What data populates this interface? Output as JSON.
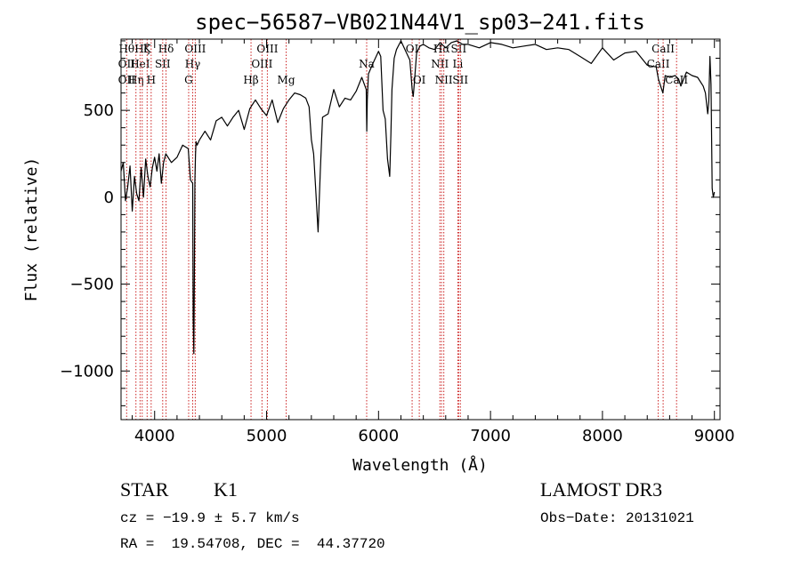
{
  "chart_data": {
    "type": "line",
    "title": "spec−56587−VB021N44V1_sp03−241.fits",
    "xlabel": "Wavelength (Å)",
    "ylabel": "Flux (relative)",
    "xlim": [
      3700,
      9050
    ],
    "ylim": [
      -1280,
      910
    ],
    "x_ticks": [
      4000,
      5000,
      6000,
      7000,
      8000,
      9000
    ],
    "x_tick_labels": [
      "4000",
      "5000",
      "6000",
      "7000",
      "8000",
      "9000"
    ],
    "y_ticks": [
      500,
      0,
      -500,
      -1000
    ],
    "y_tick_labels": [
      "500",
      "0",
      "−500",
      "−1000"
    ],
    "series": [
      {
        "name": "flux",
        "x": [
          3700,
          3720,
          3740,
          3760,
          3780,
          3800,
          3820,
          3840,
          3860,
          3880,
          3900,
          3920,
          3940,
          3960,
          3980,
          4000,
          4020,
          4040,
          4060,
          4080,
          4100,
          4150,
          4200,
          4250,
          4300,
          4320,
          4340,
          4345,
          4350,
          4355,
          4360,
          4365,
          4370,
          4380,
          4400,
          4450,
          4500,
          4550,
          4600,
          4650,
          4700,
          4750,
          4800,
          4850,
          4900,
          4950,
          5000,
          5050,
          5100,
          5150,
          5200,
          5250,
          5300,
          5350,
          5380,
          5400,
          5420,
          5440,
          5460,
          5480,
          5500,
          5550,
          5600,
          5650,
          5700,
          5750,
          5800,
          5850,
          5890,
          5895,
          5900,
          5910,
          5950,
          6000,
          6020,
          6040,
          6060,
          6080,
          6100,
          6110,
          6120,
          6140,
          6160,
          6200,
          6250,
          6280,
          6300,
          6310,
          6320,
          6340,
          6370,
          6400,
          6450,
          6500,
          6550,
          6600,
          6650,
          6700,
          6750,
          6800,
          6900,
          7000,
          7100,
          7200,
          7300,
          7400,
          7500,
          7600,
          7700,
          7800,
          7900,
          8000,
          8100,
          8200,
          8300,
          8400,
          8480,
          8500,
          8520,
          8540,
          8560,
          8600,
          8650,
          8680,
          8700,
          8750,
          8800,
          8850,
          8900,
          8920,
          8940,
          8950,
          8960,
          8970,
          8980,
          8990,
          9000
        ],
        "y": [
          150,
          200,
          -20,
          60,
          180,
          -80,
          120,
          20,
          -20,
          170,
          0,
          220,
          120,
          60,
          170,
          230,
          150,
          250,
          80,
          200,
          250,
          200,
          230,
          300,
          280,
          100,
          80,
          -700,
          -900,
          -450,
          100,
          250,
          320,
          300,
          330,
          380,
          330,
          440,
          460,
          410,
          460,
          500,
          390,
          510,
          560,
          510,
          470,
          560,
          430,
          510,
          560,
          600,
          590,
          570,
          520,
          330,
          250,
          30,
          -200,
          150,
          460,
          480,
          620,
          520,
          570,
          560,
          610,
          690,
          620,
          380,
          560,
          710,
          770,
          840,
          810,
          500,
          450,
          220,
          120,
          360,
          620,
          800,
          850,
          900,
          830,
          790,
          620,
          580,
          660,
          830,
          870,
          880,
          860,
          850,
          890,
          860,
          890,
          900,
          880,
          880,
          860,
          890,
          880,
          860,
          870,
          880,
          850,
          860,
          850,
          810,
          770,
          860,
          790,
          830,
          840,
          760,
          750,
          680,
          640,
          600,
          700,
          690,
          700,
          680,
          640,
          720,
          700,
          690,
          640,
          600,
          480,
          550,
          810,
          650,
          50,
          0,
          30
        ]
      }
    ],
    "lines": [
      {
        "x": 3750,
        "labels": [
          "Hθ",
          "OII",
          "OII"
        ],
        "rows": [
          0,
          1,
          2
        ]
      },
      {
        "x": 3833,
        "labels": [
          "Hη"
        ],
        "rows": [
          2
        ]
      },
      {
        "x": 3870,
        "labels": [
          "HeI"
        ],
        "rows": [
          1
        ]
      },
      {
        "x": 3889,
        "labels": [
          "Hζ"
        ],
        "rows": [
          0
        ]
      },
      {
        "x": 3933,
        "labels": [
          "K"
        ],
        "rows": [
          0
        ]
      },
      {
        "x": 3969,
        "labels": [
          "H"
        ],
        "rows": [
          2
        ]
      },
      {
        "x": 4072,
        "labels": [
          "SII"
        ],
        "rows": [
          1
        ]
      },
      {
        "x": 4102,
        "labels": [
          "Hδ"
        ],
        "rows": [
          0
        ]
      },
      {
        "x": 4304,
        "labels": [
          "G"
        ],
        "rows": [
          2
        ]
      },
      {
        "x": 4340,
        "labels": [
          "Hγ"
        ],
        "rows": [
          1
        ]
      },
      {
        "x": 4363,
        "labels": [
          "OIII"
        ],
        "rows": [
          0
        ]
      },
      {
        "x": 4861,
        "labels": [
          "Hβ"
        ],
        "rows": [
          2
        ]
      },
      {
        "x": 4959,
        "labels": [
          "OIII"
        ],
        "rows": [
          1
        ]
      },
      {
        "x": 5007,
        "labels": [
          "OIII"
        ],
        "rows": [
          0
        ]
      },
      {
        "x": 5175,
        "labels": [
          "Mg"
        ],
        "rows": [
          2
        ]
      },
      {
        "x": 5894,
        "labels": [
          "Na"
        ],
        "rows": [
          1
        ]
      },
      {
        "x": 6300,
        "labels": [
          "OI"
        ],
        "rows": [
          0
        ]
      },
      {
        "x": 6364,
        "labels": [
          "OI"
        ],
        "rows": [
          2
        ]
      },
      {
        "x": 6548,
        "labels": [
          "NII"
        ],
        "rows": [
          1
        ]
      },
      {
        "x": 6563,
        "labels": [
          "Hα"
        ],
        "rows": [
          0
        ]
      },
      {
        "x": 6583,
        "labels": [
          "NII"
        ],
        "rows": [
          2
        ]
      },
      {
        "x": 6708,
        "labels": [
          "Li"
        ],
        "rows": [
          1
        ]
      },
      {
        "x": 6716,
        "labels": [
          "SII"
        ],
        "rows": [
          0
        ]
      },
      {
        "x": 6731,
        "labels": [
          "SII"
        ],
        "rows": [
          2
        ]
      },
      {
        "x": 8498,
        "labels": [
          "CaII"
        ],
        "rows": [
          1
        ]
      },
      {
        "x": 8542,
        "labels": [
          "CaII"
        ],
        "rows": [
          0
        ]
      },
      {
        "x": 8662,
        "labels": [
          "CaII"
        ],
        "rows": [
          2
        ]
      }
    ]
  },
  "info": {
    "class": "STAR",
    "subclass": "K1",
    "survey": "LAMOST DR3",
    "cz": "cz = −19.9 ± 5.7 km/s",
    "obs_date": "Obs−Date: 20131021",
    "radec": "RA =  19.54708, DEC =  44.37720"
  },
  "colors": {
    "line_markers": "#cc2222",
    "spectrum": "#000000"
  }
}
